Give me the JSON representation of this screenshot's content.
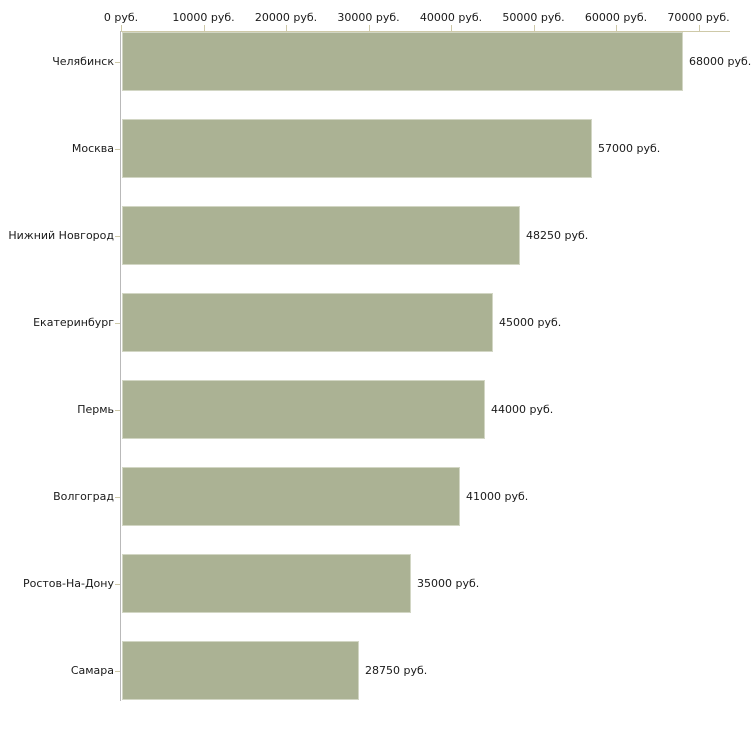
{
  "chart_data": {
    "type": "bar",
    "orientation": "horizontal",
    "title": "",
    "xlabel": "",
    "ylabel": "",
    "grid": false,
    "legend": false,
    "categories": [
      "Челябинск",
      "Москва",
      "Нижний Новгород",
      "Екатеринбург",
      "Пермь",
      "Волгоград",
      "Ростов-На-Дону",
      "Самара"
    ],
    "values": [
      68000,
      57000,
      48250,
      45000,
      44000,
      41000,
      35000,
      28750
    ],
    "value_labels": [
      "68000 руб.",
      "57000 руб.",
      "48250 руб.",
      "45000 руб.",
      "44000 руб.",
      "41000 руб.",
      "35000 руб.",
      "28750 руб."
    ],
    "xaxis": {
      "position": "top",
      "unit": "руб.",
      "tick_values": [
        0,
        10000,
        20000,
        30000,
        40000,
        50000,
        60000,
        70000
      ],
      "tick_labels": [
        "0 руб.",
        "10000 руб.",
        "20000 руб.",
        "30000 руб.",
        "40000 руб.",
        "50000 руб.",
        "60000 руб.",
        "70000 руб."
      ],
      "range": [
        0,
        73800
      ]
    },
    "colors": {
      "background": "#ffffff",
      "bar_fill": "#abb294",
      "bar_border": "#d2d6c4",
      "y_axis_line": "#b9b9b9",
      "x_axis_line": "#cec9a8",
      "tick_mark": "#cec9a8",
      "label_text": "#1a1a1a"
    }
  }
}
